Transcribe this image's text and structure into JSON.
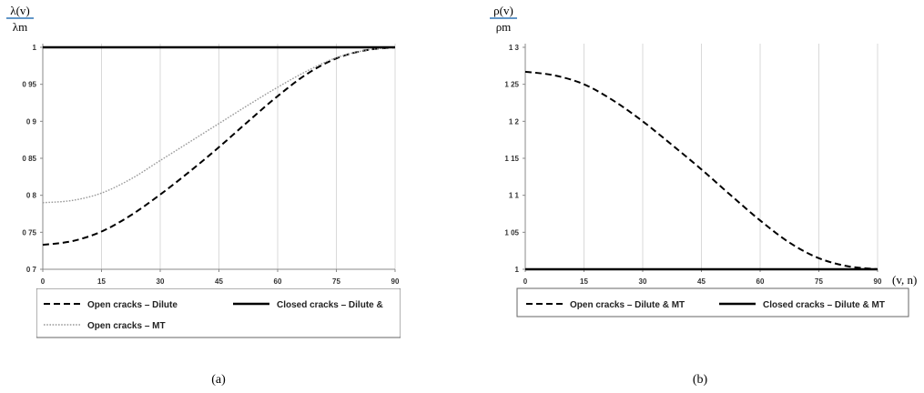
{
  "chart_data": [
    {
      "type": "line",
      "ylabel_numerator": "λ(v)",
      "ylabel_denominator": "λm",
      "xlabel": "",
      "caption": "(a)",
      "xlim": [
        0,
        90
      ],
      "ylim": [
        0.7,
        1.0
      ],
      "x_ticks": [
        0,
        15,
        30,
        45,
        60,
        75,
        90
      ],
      "x_tick_labels": [
        "0",
        "15",
        "30",
        "45",
        "60",
        "75",
        "90"
      ],
      "y_ticks": [
        0.7,
        0.75,
        0.8,
        0.85,
        0.9,
        0.95,
        1.0
      ],
      "y_tick_labels": [
        "0 7",
        "0 75",
        "0 8",
        "0 85",
        "0 9",
        "0 95",
        "1"
      ],
      "grid": "vertical",
      "legend_position": "bottom",
      "series": [
        {
          "name": "Open cracks – Dilute",
          "style": "dashed",
          "color": "#000000",
          "x": [
            0,
            7.5,
            15,
            22.5,
            30,
            37.5,
            45,
            52.5,
            60,
            67.5,
            75,
            82.5,
            90
          ],
          "y": [
            0.733,
            0.738,
            0.751,
            0.773,
            0.801,
            0.832,
            0.865,
            0.9,
            0.934,
            0.964,
            0.985,
            0.996,
            1.0
          ]
        },
        {
          "name": "Open cracks – MT",
          "style": "dotted",
          "color": "#999999",
          "x": [
            0,
            7.5,
            15,
            22.5,
            30,
            37.5,
            45,
            52.5,
            60,
            67.5,
            75,
            82.5,
            90
          ],
          "y": [
            0.79,
            0.793,
            0.803,
            0.822,
            0.847,
            0.872,
            0.897,
            0.922,
            0.946,
            0.968,
            0.986,
            0.996,
            1.0
          ]
        },
        {
          "name": "Closed cracks – Dilute &",
          "style": "solid",
          "color": "#000000",
          "x": [
            0,
            90
          ],
          "y": [
            1.0,
            1.0
          ]
        }
      ]
    },
    {
      "type": "line",
      "ylabel_numerator": "ρ(v)",
      "ylabel_denominator": "ρm",
      "xlabel": "(v, n)",
      "caption": "(b)",
      "xlim": [
        0,
        90
      ],
      "ylim": [
        1.0,
        1.3
      ],
      "x_ticks": [
        0,
        15,
        30,
        45,
        60,
        75,
        90
      ],
      "x_tick_labels": [
        "0",
        "15",
        "30",
        "45",
        "60",
        "75",
        "90"
      ],
      "y_ticks": [
        1.0,
        1.05,
        1.1,
        1.15,
        1.2,
        1.25,
        1.3
      ],
      "y_tick_labels": [
        "1",
        "1 05",
        "1 1",
        "1 15",
        "1 2",
        "1 25",
        "1 3"
      ],
      "grid": "vertical",
      "legend_position": "bottom",
      "series": [
        {
          "name": "Open cracks – Dilute & MT",
          "style": "dashed",
          "color": "#000000",
          "x": [
            0,
            7.5,
            15,
            22.5,
            30,
            37.5,
            45,
            52.5,
            60,
            67.5,
            75,
            82.5,
            90
          ],
          "y": [
            1.267,
            1.262,
            1.25,
            1.228,
            1.2,
            1.168,
            1.135,
            1.1,
            1.066,
            1.036,
            1.015,
            1.004,
            1.0
          ]
        },
        {
          "name": "Closed cracks – Dilute & MT",
          "style": "solid",
          "color": "#000000",
          "x": [
            0,
            90
          ],
          "y": [
            1.0,
            1.0
          ]
        }
      ]
    }
  ]
}
